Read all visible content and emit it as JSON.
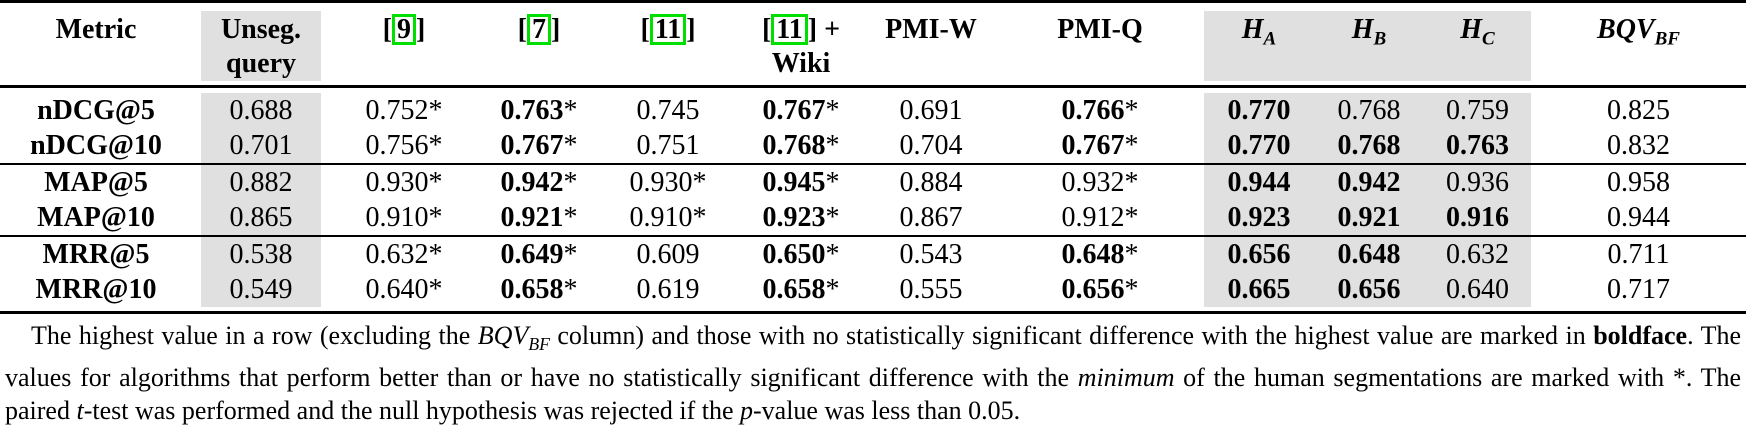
{
  "colors": {
    "shade": "#E0E0E0",
    "cite_border": "#00DF00"
  },
  "table": {
    "star_mark": "*",
    "cite_brackets": [
      "[",
      "]"
    ],
    "columns": [
      {
        "key": "metric",
        "label": "Metric"
      },
      {
        "key": "unseg",
        "label": "Unseg. query",
        "shaded": true
      },
      {
        "key": "ref9",
        "cite": "9"
      },
      {
        "key": "ref7",
        "cite": "7"
      },
      {
        "key": "ref11",
        "cite": "11"
      },
      {
        "key": "ref11wiki",
        "cite": "11",
        "plus": "+",
        "line2": "Wiki"
      },
      {
        "key": "pmiw",
        "label": "PMI-W"
      },
      {
        "key": "pmiq",
        "label": "PMI-Q"
      },
      {
        "key": "ha",
        "math_base": "H",
        "math_sub": "A",
        "shaded": true
      },
      {
        "key": "hb",
        "math_base": "H",
        "math_sub": "B",
        "shaded": true
      },
      {
        "key": "hc",
        "math_base": "H",
        "math_sub": "C",
        "shaded": true
      },
      {
        "key": "bqv",
        "math_base": "BQV",
        "math_sub": "BF"
      }
    ],
    "groups": [
      {
        "rows": [
          {
            "label": "nDCG@5",
            "cells": [
              {
                "v": "0.688"
              },
              {
                "v": "0.752",
                "star": true
              },
              {
                "v": "0.763",
                "star": true,
                "bold": true
              },
              {
                "v": "0.745"
              },
              {
                "v": "0.767",
                "star": true,
                "bold": true
              },
              {
                "v": "0.691"
              },
              {
                "v": "0.766",
                "star": true,
                "bold": true
              },
              {
                "v": "0.770",
                "bold": true
              },
              {
                "v": "0.768"
              },
              {
                "v": "0.759"
              },
              {
                "v": "0.825"
              }
            ]
          },
          {
            "label": "nDCG@10",
            "cells": [
              {
                "v": "0.701"
              },
              {
                "v": "0.756",
                "star": true
              },
              {
                "v": "0.767",
                "star": true,
                "bold": true
              },
              {
                "v": "0.751"
              },
              {
                "v": "0.768",
                "star": true,
                "bold": true
              },
              {
                "v": "0.704"
              },
              {
                "v": "0.767",
                "star": true,
                "bold": true
              },
              {
                "v": "0.770",
                "bold": true
              },
              {
                "v": "0.768",
                "bold": true
              },
              {
                "v": "0.763",
                "bold": true
              },
              {
                "v": "0.832"
              }
            ]
          }
        ]
      },
      {
        "rows": [
          {
            "label": "MAP@5",
            "cells": [
              {
                "v": "0.882"
              },
              {
                "v": "0.930",
                "star": true
              },
              {
                "v": "0.942",
                "star": true,
                "bold": true
              },
              {
                "v": "0.930",
                "star": true
              },
              {
                "v": "0.945",
                "star": true,
                "bold": true
              },
              {
                "v": "0.884"
              },
              {
                "v": "0.932",
                "star": true
              },
              {
                "v": "0.944",
                "bold": true
              },
              {
                "v": "0.942",
                "bold": true
              },
              {
                "v": "0.936"
              },
              {
                "v": "0.958"
              }
            ]
          },
          {
            "label": "MAP@10",
            "cells": [
              {
                "v": "0.865"
              },
              {
                "v": "0.910",
                "star": true
              },
              {
                "v": "0.921",
                "star": true,
                "bold": true
              },
              {
                "v": "0.910",
                "star": true
              },
              {
                "v": "0.923",
                "star": true,
                "bold": true
              },
              {
                "v": "0.867"
              },
              {
                "v": "0.912",
                "star": true
              },
              {
                "v": "0.923",
                "bold": true
              },
              {
                "v": "0.921",
                "bold": true
              },
              {
                "v": "0.916",
                "bold": true
              },
              {
                "v": "0.944"
              }
            ]
          }
        ]
      },
      {
        "rows": [
          {
            "label": "MRR@5",
            "cells": [
              {
                "v": "0.538"
              },
              {
                "v": "0.632",
                "star": true
              },
              {
                "v": "0.649",
                "star": true,
                "bold": true
              },
              {
                "v": "0.609"
              },
              {
                "v": "0.650",
                "star": true,
                "bold": true
              },
              {
                "v": "0.543"
              },
              {
                "v": "0.648",
                "star": true,
                "bold": true
              },
              {
                "v": "0.656",
                "bold": true
              },
              {
                "v": "0.648",
                "bold": true
              },
              {
                "v": "0.632"
              },
              {
                "v": "0.711"
              }
            ]
          },
          {
            "label": "MRR@10",
            "cells": [
              {
                "v": "0.549"
              },
              {
                "v": "0.640",
                "star": true
              },
              {
                "v": "0.658",
                "star": true,
                "bold": true
              },
              {
                "v": "0.619"
              },
              {
                "v": "0.658",
                "star": true,
                "bold": true
              },
              {
                "v": "0.555"
              },
              {
                "v": "0.656",
                "star": true,
                "bold": true
              },
              {
                "v": "0.665",
                "bold": true
              },
              {
                "v": "0.656",
                "bold": true
              },
              {
                "v": "0.640"
              },
              {
                "v": "0.717"
              }
            ]
          }
        ]
      }
    ]
  },
  "caption": {
    "segments": [
      {
        "t": "The highest value in a row (excluding the "
      },
      {
        "t": "BQV",
        "style": "italic"
      },
      {
        "t": "BF",
        "style": "italic-sub"
      },
      {
        "t": " column) and those with no statistically significant difference with the highest value are marked in "
      },
      {
        "t": "boldface",
        "style": "bold"
      },
      {
        "t": ". The values for algorithms that perform better than or have no statistically significant difference with the "
      },
      {
        "t": "minimum",
        "style": "italic"
      },
      {
        "t": " of the human segmentations are marked with *. The paired "
      },
      {
        "t": "t",
        "style": "italic"
      },
      {
        "t": "-test was performed and the null hypothesis was rejected if the "
      },
      {
        "t": "p",
        "style": "italic"
      },
      {
        "t": "-value was less than 0.05."
      }
    ]
  }
}
